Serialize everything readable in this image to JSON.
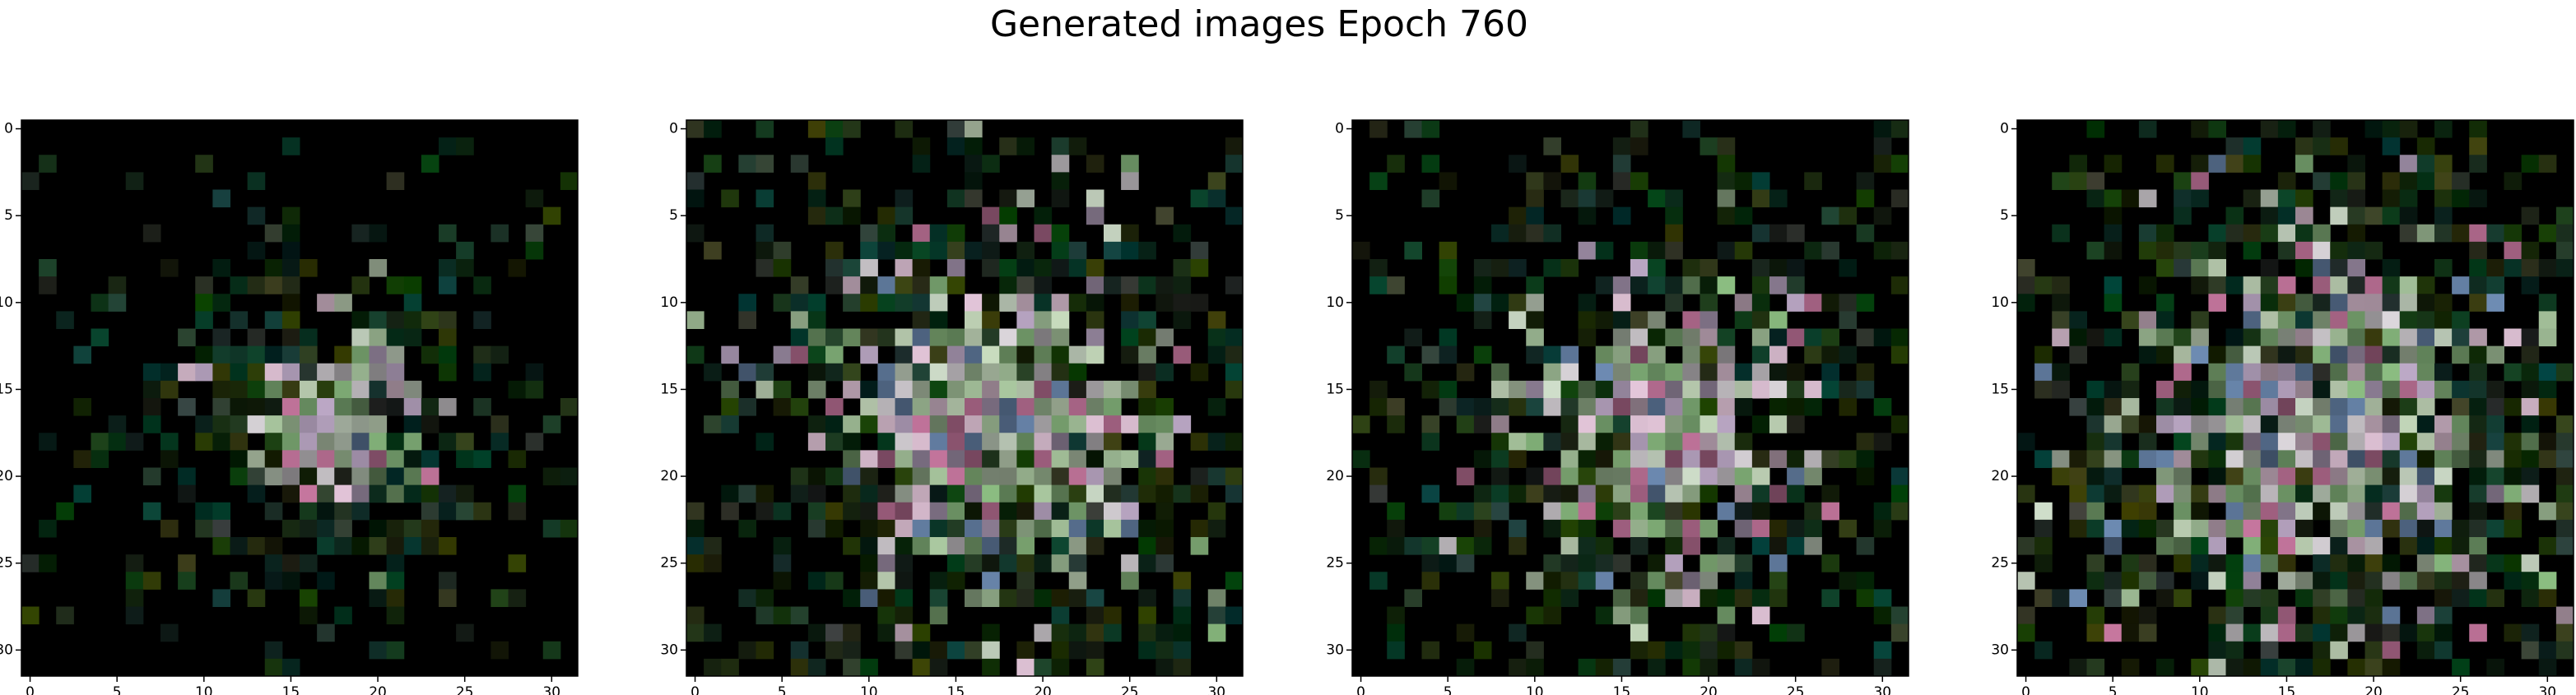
{
  "title": "Generated images Epoch 760",
  "chart_data": [
    {
      "type": "image",
      "xlim": [
        -0.5,
        31.5
      ],
      "ylim": [
        31.5,
        -0.5
      ],
      "xticks": [
        0,
        5,
        10,
        15,
        20,
        25,
        30
      ],
      "yticks": [
        0,
        5,
        10,
        15,
        20,
        25,
        30
      ]
    },
    {
      "type": "image",
      "xlim": [
        -0.5,
        31.5
      ],
      "ylim": [
        31.5,
        -0.5
      ],
      "xticks": [
        0,
        5,
        10,
        15,
        20,
        25,
        30
      ],
      "yticks": [
        0,
        5,
        10,
        15,
        20,
        25,
        30
      ]
    },
    {
      "type": "image",
      "xlim": [
        -0.5,
        31.5
      ],
      "ylim": [
        31.5,
        -0.5
      ],
      "xticks": [
        0,
        5,
        10,
        15,
        20,
        25,
        30
      ],
      "yticks": [
        0,
        5,
        10,
        15,
        20,
        25,
        30
      ]
    },
    {
      "type": "image",
      "xlim": [
        -0.5,
        31.5
      ],
      "ylim": [
        31.5,
        -0.5
      ],
      "xticks": [
        0,
        5,
        10,
        15,
        20,
        25,
        30
      ],
      "yticks": [
        0,
        5,
        10,
        15,
        20,
        25,
        30
      ]
    }
  ]
}
